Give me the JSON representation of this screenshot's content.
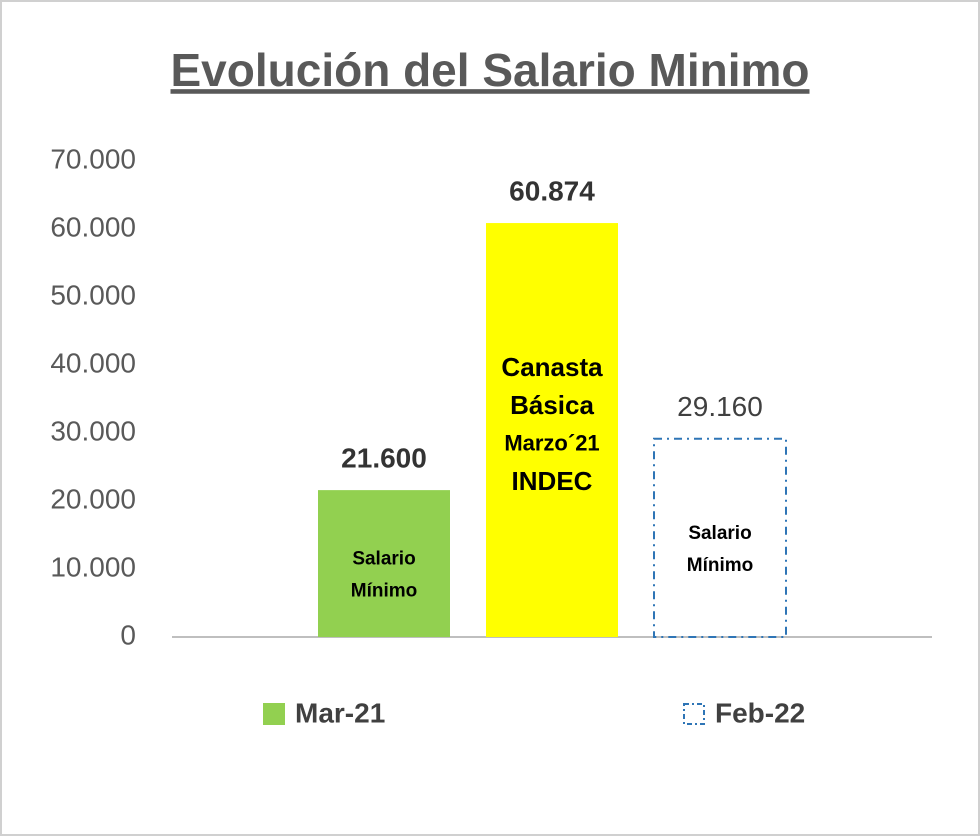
{
  "chart_data": {
    "type": "bar",
    "title": "Evolución del Salario Minimo",
    "categories": [
      null,
      null,
      null
    ],
    "values": [
      21600,
      60874,
      29160
    ],
    "value_labels": [
      "21.600",
      "60.874",
      "29.160"
    ],
    "bar_labels": [
      [
        "Salario",
        "Mínimo"
      ],
      [
        "Canasta",
        "Básica",
        "Marzo´21",
        "INDEC"
      ],
      [
        "Salario",
        "Mínimo"
      ]
    ],
    "colors": [
      "#92d050",
      "#ffff00",
      "#2e75b6"
    ],
    "styles": [
      "solid",
      "solid",
      "dashed"
    ],
    "ylim": [
      0,
      70000
    ],
    "yticks": [
      0,
      {
        "value": 10000,
        "label": "10.000"
      },
      {
        "value": 20000,
        "label": "20.000"
      },
      {
        "value": 30000,
        "label": "30.000"
      },
      {
        "value": 40000,
        "label": "40.000"
      },
      {
        "value": 50000,
        "label": "50.000"
      },
      {
        "value": 60000,
        "label": "60.000"
      },
      {
        "value": 70000,
        "label": "70.000"
      }
    ],
    "grid": false,
    "legend": [
      {
        "name": "Mar-21",
        "color": "#92d050",
        "style": "solid"
      },
      {
        "name": "Feb-22",
        "color": "#2e75b6",
        "style": "dashed"
      }
    ]
  }
}
